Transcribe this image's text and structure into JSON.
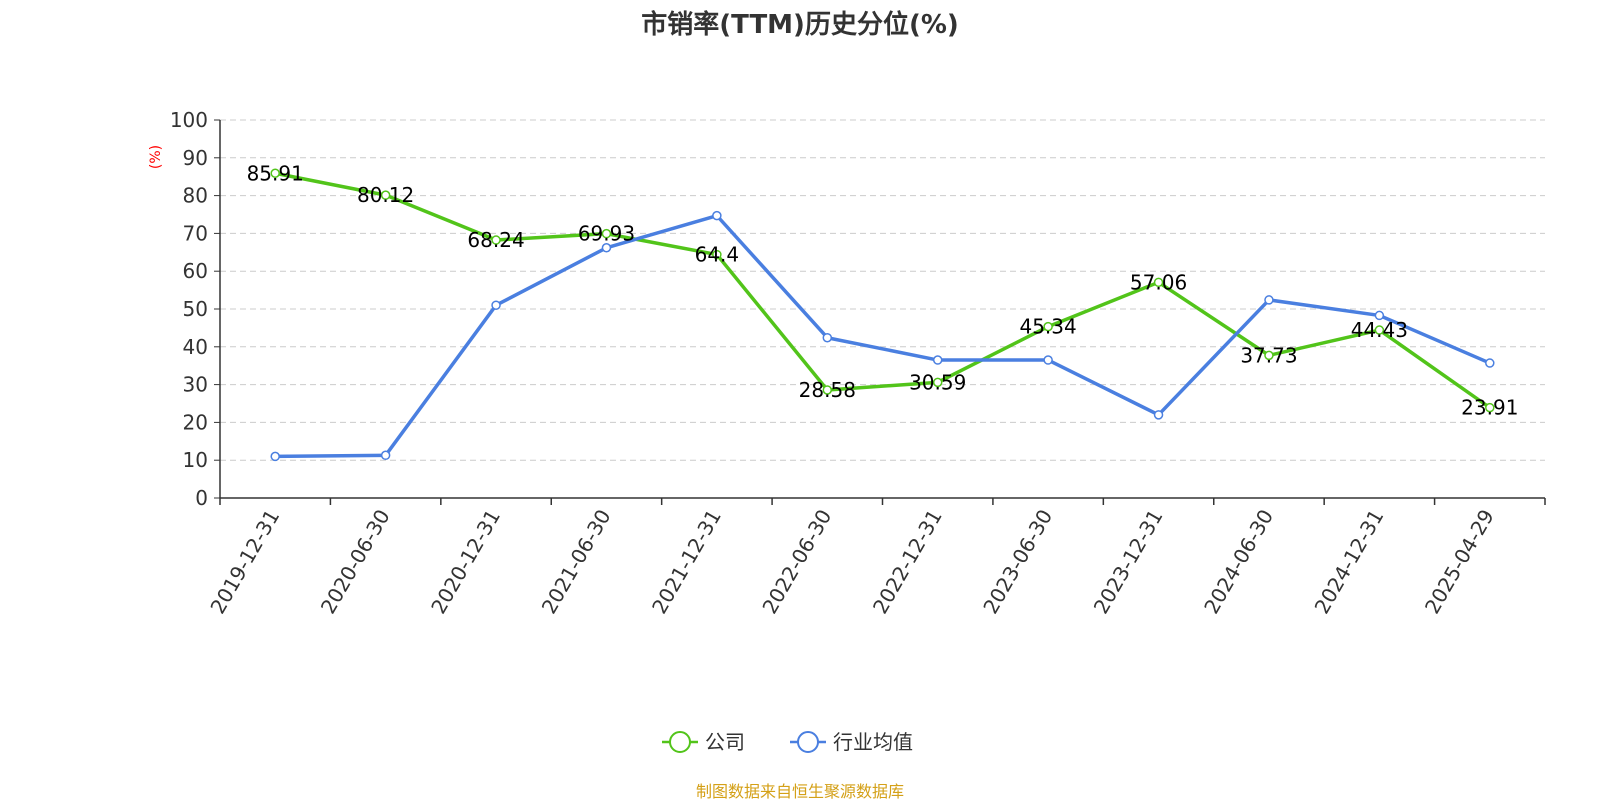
{
  "title": "市销率(TTM)历史分位(%)",
  "source_note": "制图数据来自恒生聚源数据库",
  "colors": {
    "company": "#52c41a",
    "industry": "#4a7fe0",
    "unit": "#ff0000",
    "source": "#d4a017",
    "grid": "#cccccc",
    "axis": "#333333"
  },
  "chart_data": {
    "type": "line",
    "title": "市销率(TTM)历史分位(%)",
    "ylabel": "(%)",
    "xlabel": "",
    "ylim": [
      0,
      100
    ],
    "yticks": [
      0,
      10,
      20,
      30,
      40,
      50,
      60,
      70,
      80,
      90,
      100
    ],
    "grid": true,
    "legend_position": "bottom-center",
    "categories": [
      "2019-12-31",
      "2020-06-30",
      "2020-12-31",
      "2021-06-30",
      "2021-12-31",
      "2022-06-30",
      "2022-12-31",
      "2023-06-30",
      "2023-12-31",
      "2024-06-30",
      "2024-12-31",
      "2025-04-29"
    ],
    "series": [
      {
        "name": "公司",
        "color": "#52c41a",
        "values": [
          85.91,
          80.12,
          68.24,
          69.93,
          64.4,
          28.58,
          30.59,
          45.34,
          57.06,
          37.73,
          44.43,
          23.91
        ],
        "labels": [
          "85.91",
          "80.12",
          "68.24",
          "69.93",
          "64.4",
          "28.58",
          "30.59",
          "45.34",
          "57.06",
          "37.73",
          "44.43",
          "23.91"
        ]
      },
      {
        "name": "行业均值",
        "color": "#4a7fe0",
        "values": [
          11,
          11.3,
          51,
          66.2,
          74.7,
          42.4,
          36.5,
          36.5,
          22,
          52.4,
          48.3,
          35.7
        ]
      }
    ]
  }
}
